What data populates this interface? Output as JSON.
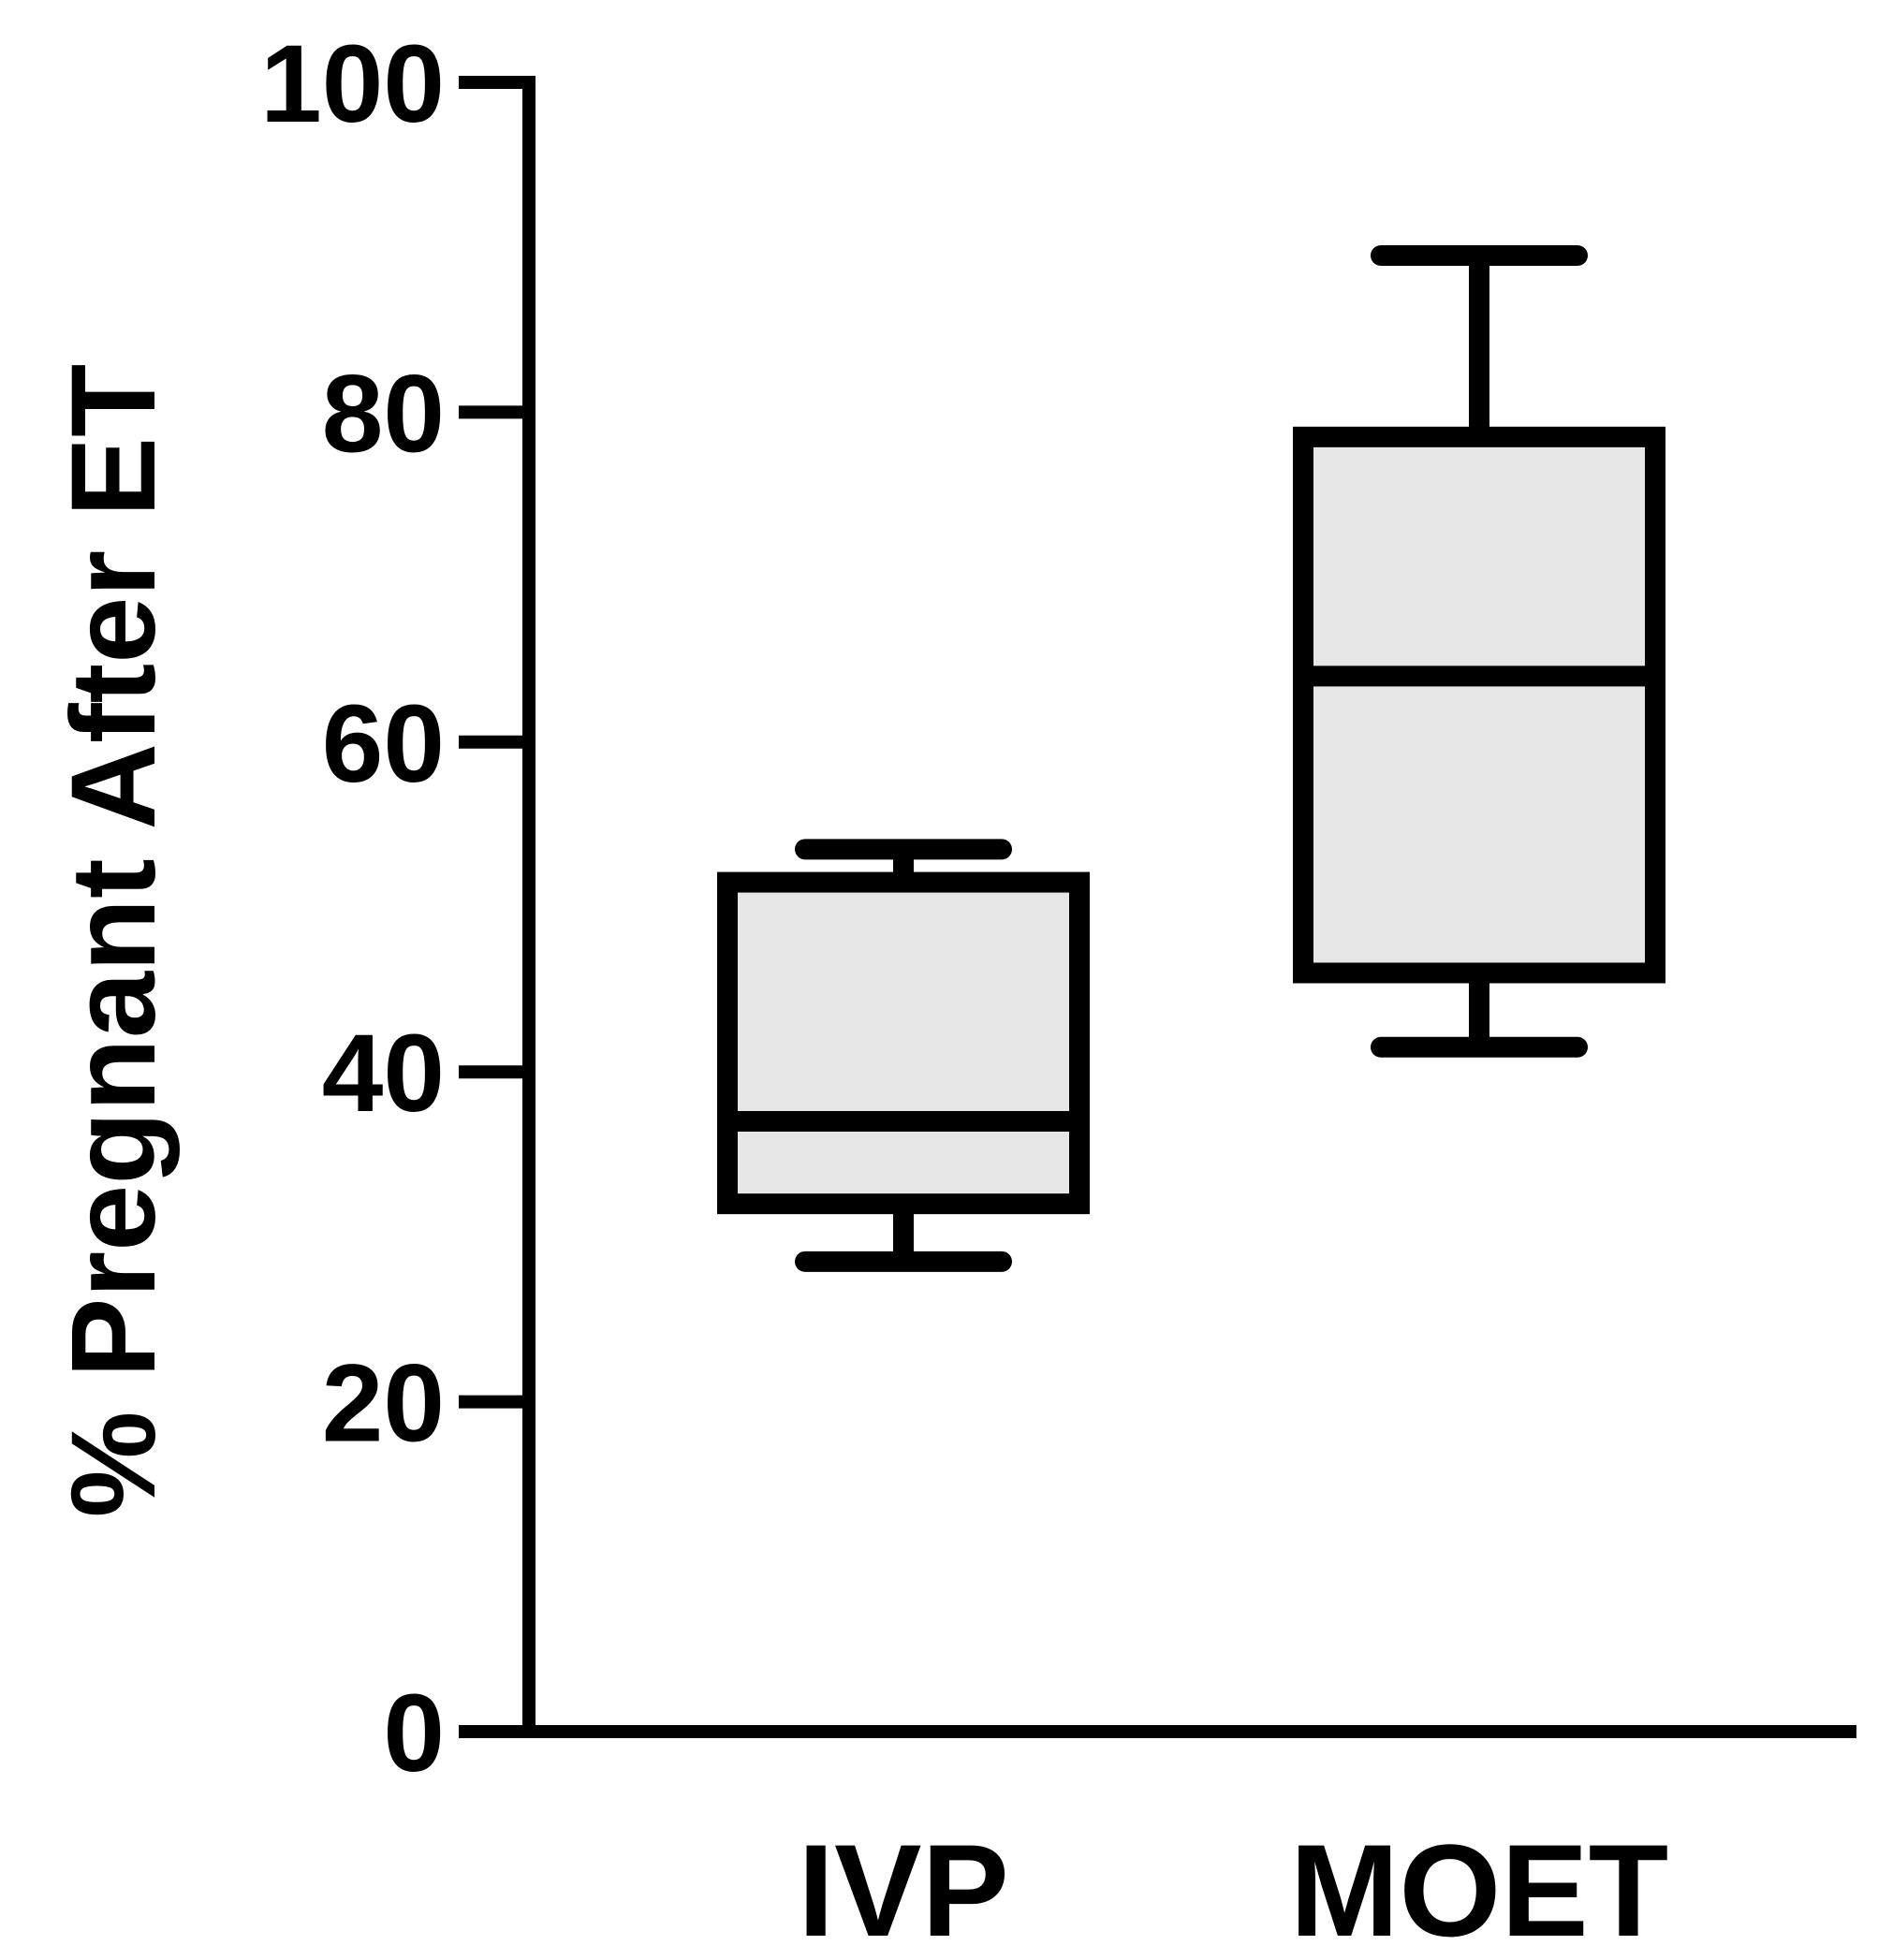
{
  "chart_data": {
    "type": "box",
    "title": "",
    "xlabel": "",
    "ylabel": "% Pregnant After ET",
    "ylim": [
      0,
      100
    ],
    "yticks": [
      "0",
      "20",
      "40",
      "60",
      "80",
      "100"
    ],
    "categories": [
      "IVP",
      "MOET"
    ],
    "grid": false,
    "box_fill": "#e6e6e6",
    "boxes": [
      {
        "name": "IVP",
        "min": 28.5,
        "q1": 32,
        "median": 37,
        "q3": 51.5,
        "max": 53.5
      },
      {
        "name": "MOET",
        "min": 41.5,
        "q1": 46,
        "median": 64,
        "q3": 78.5,
        "max": 89.5
      }
    ]
  }
}
